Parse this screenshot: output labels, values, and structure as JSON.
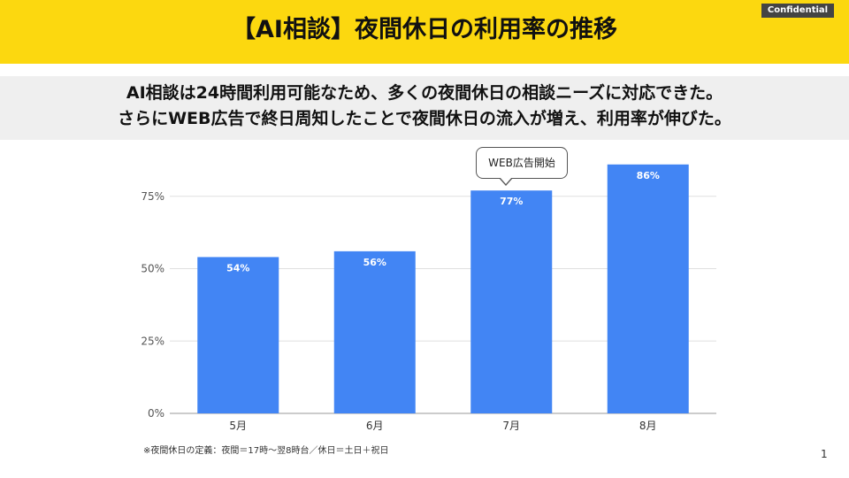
{
  "slide": {
    "title": "【AI相談】夜間休日の利用率の推移",
    "badge": "Confidential",
    "summary_line1": "AI相談は24時間利用可能なため、多くの夜間休日の相談ニーズに対応できた。",
    "summary_line2": "さらにWEB広告で終日周知したことで夜間休日の流入が増え、利用率が伸びた。",
    "footnote": "※夜間休日の定義：夜間＝17時〜翌8時台／休日＝土日＋祝日",
    "page_number": "1"
  },
  "callout": {
    "text": "WEB広告開始",
    "target_category": "7月"
  },
  "colors": {
    "header": "#fcd80f",
    "summary_band": "#efefef",
    "bar": "#4285f4",
    "grid": "#e0e0e0",
    "axis": "#999999"
  },
  "chart_data": {
    "type": "bar",
    "categories": [
      "5月",
      "6月",
      "7月",
      "8月"
    ],
    "values": [
      54,
      56,
      77,
      86
    ],
    "data_labels": [
      "54%",
      "56%",
      "77%",
      "86%"
    ],
    "ylim": [
      0,
      100
    ],
    "yticks": [
      0,
      25,
      50,
      75
    ],
    "ytick_labels": [
      "0%",
      "25%",
      "50%",
      "75%"
    ],
    "grid": true,
    "legend": "none"
  }
}
